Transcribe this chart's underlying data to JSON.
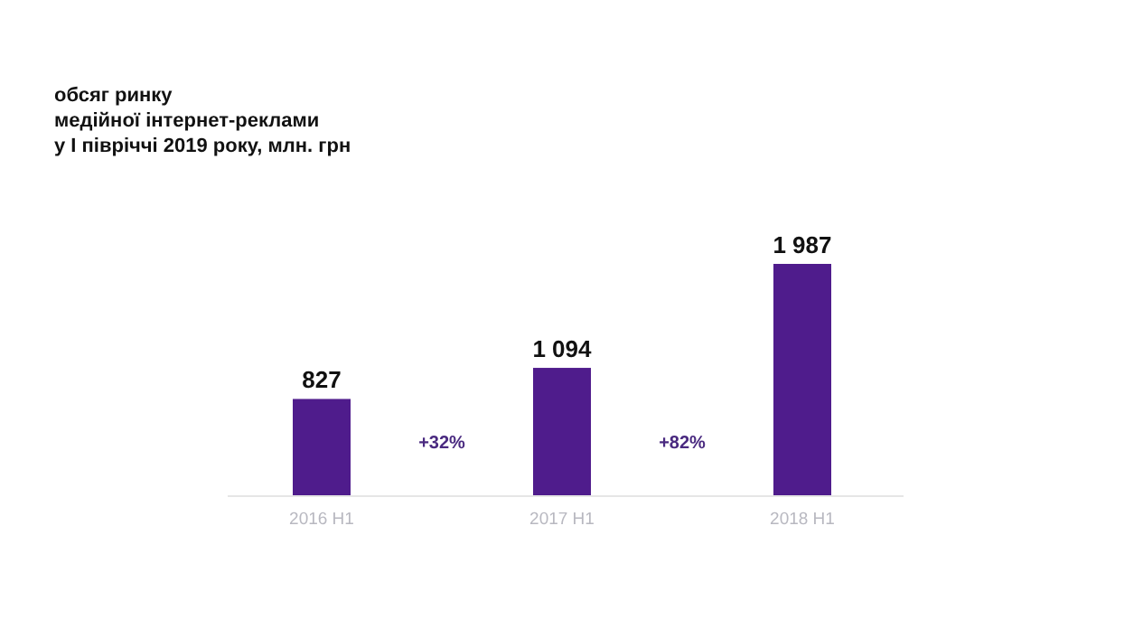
{
  "chart_data": {
    "type": "bar",
    "title": "обсяг ринку\nмедійної інтернет-реклами\nу І півріччі 2019 року, млн. грн",
    "categories": [
      "2016 H1",
      "2017 H1",
      "2018 H1"
    ],
    "values": [
      827,
      1094,
      1987
    ],
    "value_labels": [
      "827",
      "1 094",
      "1 987"
    ],
    "color": "#4f1c8c",
    "relative": false,
    "annotations": [
      "+32%",
      "+82%"
    ]
  }
}
